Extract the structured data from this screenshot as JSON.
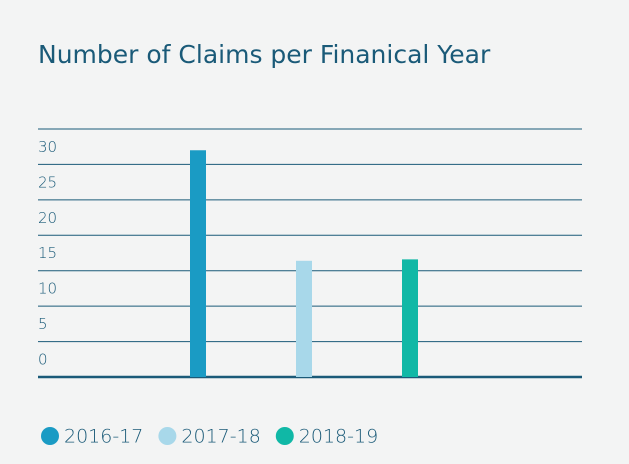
{
  "chart_data": {
    "type": "bar",
    "title": "Number of Claims per Finanical Year",
    "categories": [
      "2016-17",
      "2017-18",
      "2018-19"
    ],
    "values": [
      32,
      16.4,
      16.6
    ],
    "colors": [
      "#1a9bc4",
      "#a8d8ea",
      "#10b8a6"
    ],
    "ylim": [
      0,
      35
    ],
    "yticks": [
      0,
      5,
      10,
      15,
      20,
      25,
      30
    ],
    "grid": true
  }
}
